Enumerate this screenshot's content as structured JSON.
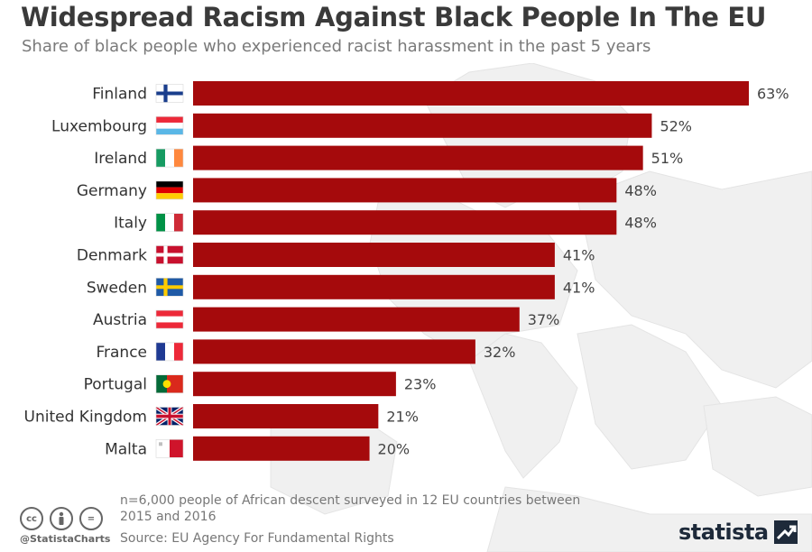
{
  "header": {
    "title": "Widespread Racism Against Black People In The EU",
    "subtitle": "Share of black people who experienced racist harassment in the past 5 years"
  },
  "chart_data": {
    "type": "bar",
    "orientation": "horizontal",
    "title": "Widespread Racism Against Black People In The EU",
    "subtitle": "Share of black people who experienced racist harassment in the past 5 years",
    "categories": [
      "Finland",
      "Luxembourg",
      "Ireland",
      "Germany",
      "Italy",
      "Denmark",
      "Sweden",
      "Austria",
      "France",
      "Portugal",
      "United Kingdom",
      "Malta"
    ],
    "values": [
      63,
      52,
      51,
      48,
      48,
      41,
      41,
      37,
      32,
      23,
      21,
      20
    ],
    "value_labels": [
      "63%",
      "52%",
      "51%",
      "48%",
      "48%",
      "41%",
      "41%",
      "37%",
      "32%",
      "23%",
      "21%",
      "20%"
    ],
    "flags": [
      "flag-finland-icon",
      "flag-luxembourg-icon",
      "flag-ireland-icon",
      "flag-germany-icon",
      "flag-italy-icon",
      "flag-denmark-icon",
      "flag-sweden-icon",
      "flag-austria-icon",
      "flag-france-icon",
      "flag-portugal-icon",
      "flag-united-kingdom-icon",
      "flag-malta-icon"
    ],
    "xlim": [
      0,
      63
    ],
    "grid": false,
    "bar_color": "#a50a0c"
  },
  "footer": {
    "note": "n=6,000 people of African descent surveyed in 12 EU countries between 2015 and 2016",
    "source": "Source: EU Agency For Fundamental Rights",
    "handle": "@StatistaCharts",
    "logo": "statista",
    "cc_icons": [
      "cc-icon",
      "person-icon",
      "equals-icon"
    ],
    "cc_labels": [
      "cc",
      "",
      "="
    ]
  }
}
